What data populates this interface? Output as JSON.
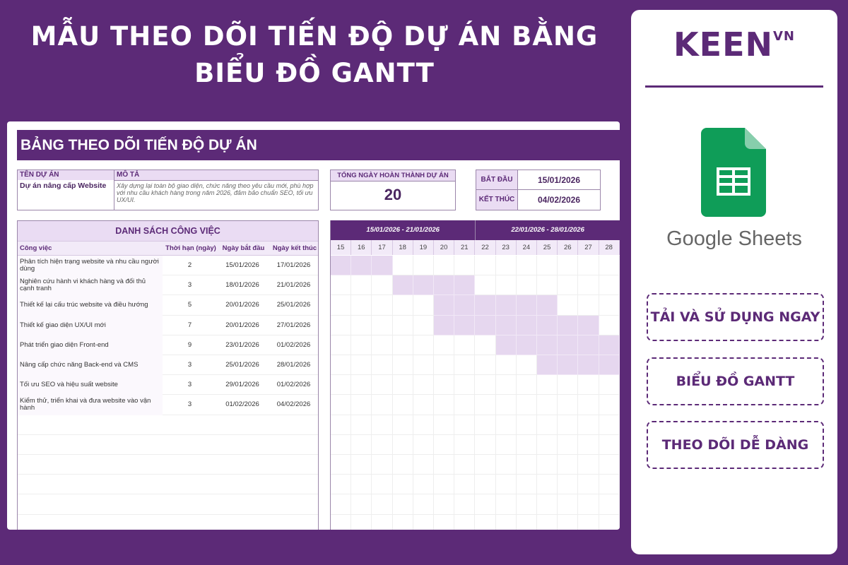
{
  "title_line1": "MẪU THEO DÕI TIẾN ĐỘ DỰ ÁN BẰNG",
  "title_line2": "BIỂU ĐỒ GANTT",
  "sheet": {
    "banner": "BẢNG THEO DÕI TIẾN ĐỘ DỰ ÁN",
    "project_name_label": "TÊN DỰ ÁN",
    "project_name": "Dự án nâng cấp Website",
    "description_label": "MÔ TẢ",
    "description": "Xây dựng lại toàn bộ giao diện, chức năng theo yêu cầu mới, phù hợp với nhu cầu khách hàng trong năm 2026, đảm bảo chuẩn SEO, tối ưu UX/UI.",
    "total_days_label": "TỔNG NGÀY HOÀN THÀNH DỰ ÁN",
    "total_days": "20",
    "start_label": "BẮT ĐẦU",
    "start": "15/01/2026",
    "end_label": "KẾT THÚC",
    "end": "04/02/2026",
    "task_list_title": "DANH SÁCH CÔNG VIỆC",
    "columns": [
      "Công việc",
      "Thời hạn (ngày)",
      "Ngày bắt đầu",
      "Ngày kết thúc"
    ],
    "tasks": [
      {
        "name": "Phân tích hiện trạng website và nhu cầu người dùng",
        "duration": "2",
        "start": "15/01/2026",
        "end": "17/01/2026",
        "bar": [
          15,
          17
        ]
      },
      {
        "name": "Nghiên cứu hành vi khách hàng và đối thủ cạnh tranh",
        "duration": "3",
        "start": "18/01/2026",
        "end": "21/01/2026",
        "bar": [
          18,
          21
        ]
      },
      {
        "name": "Thiết kế lại cấu trúc website và điều hướng",
        "duration": "5",
        "start": "20/01/2026",
        "end": "25/01/2026",
        "bar": [
          20,
          25
        ]
      },
      {
        "name": "Thiết kế giao diện UX/UI mới",
        "duration": "7",
        "start": "20/01/2026",
        "end": "27/01/2026",
        "bar": [
          20,
          27
        ]
      },
      {
        "name": "Phát triển giao diện Front-end",
        "duration": "9",
        "start": "23/01/2026",
        "end": "01/02/2026",
        "bar": [
          23,
          28
        ]
      },
      {
        "name": "Nâng cấp chức năng Back-end và CMS",
        "duration": "3",
        "start": "25/01/2026",
        "end": "28/01/2026",
        "bar": [
          25,
          28
        ]
      },
      {
        "name": "Tối ưu SEO và hiệu suất website",
        "duration": "3",
        "start": "29/01/2026",
        "end": "01/02/2026",
        "bar": null
      },
      {
        "name": "Kiểm thử, triển khai và đưa website vào vận hành",
        "duration": "3",
        "start": "01/02/2026",
        "end": "04/02/2026",
        "bar": null
      }
    ],
    "weeks": [
      "15/01/2026 - 21/01/2026",
      "22/01/2026 - 28/01/2026"
    ],
    "days": [
      "15",
      "16",
      "17",
      "18",
      "19",
      "20",
      "21",
      "22",
      "23",
      "24",
      "25",
      "26",
      "27",
      "28"
    ]
  },
  "panel": {
    "logo": "KEEN",
    "logo_sup": "VN",
    "app_name": "Google Sheets",
    "buttons": [
      "TẢI VÀ SỬ DỤNG NGAY",
      "BIỂU ĐỒ GANTT",
      "THEO DÕI DỄ DÀNG"
    ]
  },
  "colors": {
    "brand": "#5c2a77",
    "light": "#eadcf3",
    "bar": "#e6d7ef",
    "sheets_green": "#0f9d58"
  }
}
